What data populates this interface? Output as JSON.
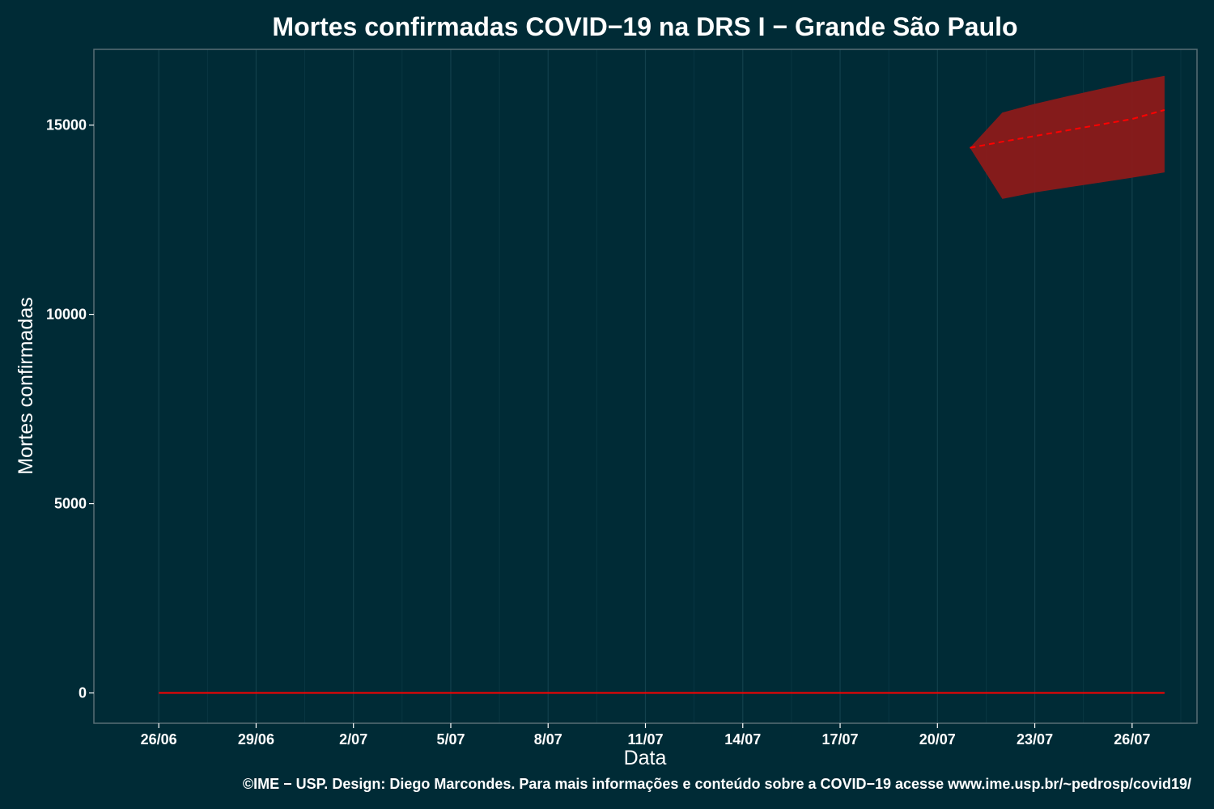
{
  "chart_data": {
    "type": "line",
    "title": "Mortes confirmadas COVID−19 na DRS I − Grande São Paulo",
    "xlabel": "Data",
    "ylabel": "Mortes confirmadas",
    "caption": "©IME − USP. Design: Diego Marcondes. Para mais informações e conteúdo sobre a COVID−19 acesse www.ime.usp.br/~pedrosp/covid19/",
    "x_ticks": [
      "26/06",
      "29/06",
      "2/07",
      "5/07",
      "8/07",
      "11/07",
      "14/07",
      "17/07",
      "20/07",
      "23/07",
      "26/07"
    ],
    "x_range": [
      "24/06",
      "28/07"
    ],
    "y_ticks": [
      0,
      5000,
      10000,
      15000
    ],
    "ylim": [
      -800,
      17000
    ],
    "grid": true,
    "legend": "none",
    "series": [
      {
        "style": "solid",
        "color": "#ff0000",
        "points": [
          {
            "x": "26/06",
            "y": 0
          },
          {
            "x": "27/07",
            "y": 0
          }
        ]
      },
      {
        "style": "dashed",
        "color": "#ff0000",
        "points": [
          {
            "x": "21/07",
            "y": 14400
          },
          {
            "x": "22/07",
            "y": 14560
          },
          {
            "x": "23/07",
            "y": 14710
          },
          {
            "x": "24/07",
            "y": 14860
          },
          {
            "x": "25/07",
            "y": 15010
          },
          {
            "x": "26/07",
            "y": 15160
          },
          {
            "x": "27/07",
            "y": 15400
          }
        ]
      }
    ],
    "band": {
      "color": "#8b1a1a",
      "points": [
        {
          "x": "21/07",
          "lower": 14400,
          "upper": 14400
        },
        {
          "x": "22/07",
          "lower": 13050,
          "upper": 15330
        },
        {
          "x": "23/07",
          "lower": 13220,
          "upper": 15560
        },
        {
          "x": "24/07",
          "lower": 13350,
          "upper": 15760
        },
        {
          "x": "25/07",
          "lower": 13480,
          "upper": 15950
        },
        {
          "x": "26/07",
          "lower": 13610,
          "upper": 16140
        },
        {
          "x": "27/07",
          "lower": 13750,
          "upper": 16300
        }
      ]
    },
    "colors": {
      "background": "#002b36",
      "panel_border": "#586e75",
      "grid": "#0e3b47",
      "text": "#ffffff"
    }
  }
}
